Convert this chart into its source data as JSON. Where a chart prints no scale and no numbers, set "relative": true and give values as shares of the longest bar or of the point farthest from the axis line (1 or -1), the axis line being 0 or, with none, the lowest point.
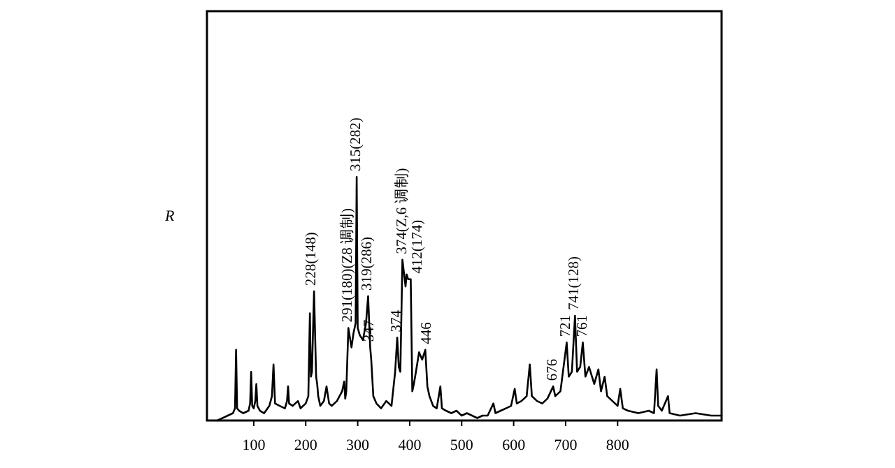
{
  "chart_data": {
    "type": "line",
    "ylabel": "R",
    "relative": true,
    "xlim": [
      10,
      1000
    ],
    "xticks": [
      100,
      200,
      300,
      400,
      500,
      600,
      700,
      800
    ],
    "grid": false,
    "line_style": "solid",
    "series": [
      {
        "color": "#000000",
        "x": [
          30,
          40,
          50,
          60,
          64,
          66,
          68,
          72,
          80,
          90,
          93,
          95,
          97,
          100,
          103,
          105,
          107,
          112,
          120,
          130,
          135,
          138,
          141,
          150,
          160,
          164,
          166,
          168,
          175,
          185,
          190,
          200,
          205,
          208,
          210,
          212,
          216,
          220,
          222,
          224,
          228,
          235,
          240,
          245,
          250,
          260,
          270,
          274,
          276,
          278,
          282,
          288,
          292,
          296,
          298,
          300,
          304,
          310,
          316,
          320,
          324,
          326,
          330,
          336,
          345,
          355,
          365,
          372,
          376,
          379,
          382,
          386,
          392,
          394,
          397,
          402,
          405,
          408,
          412,
          418,
          424,
          430,
          434,
          438,
          445,
          452,
          459,
          462,
          470,
          480,
          490,
          500,
          510,
          520,
          530,
          540,
          550,
          561,
          565,
          575,
          585,
          595,
          602,
          606,
          615,
          625,
          631,
          635,
          645,
          655,
          665,
          676,
          680,
          690,
          702,
          706,
          712,
          718,
          722,
          728,
          733,
          738,
          745,
          755,
          763,
          768,
          775,
          780,
          790,
          800,
          805,
          810,
          820,
          840,
          860,
          870,
          875,
          878,
          885,
          897,
          900,
          920,
          950,
          980,
          1000
        ],
        "values": [
          0.0,
          0.01,
          0.02,
          0.03,
          0.05,
          0.29,
          0.05,
          0.04,
          0.03,
          0.04,
          0.07,
          0.2,
          0.06,
          0.05,
          0.08,
          0.15,
          0.06,
          0.04,
          0.03,
          0.06,
          0.1,
          0.23,
          0.07,
          0.06,
          0.05,
          0.08,
          0.14,
          0.07,
          0.06,
          0.08,
          0.05,
          0.07,
          0.1,
          0.44,
          0.18,
          0.2,
          0.53,
          0.18,
          0.15,
          0.1,
          0.06,
          0.08,
          0.14,
          0.07,
          0.06,
          0.08,
          0.12,
          0.16,
          0.09,
          0.12,
          0.38,
          0.3,
          0.36,
          0.4,
          1.0,
          0.38,
          0.35,
          0.33,
          0.4,
          0.51,
          0.3,
          0.25,
          0.1,
          0.07,
          0.05,
          0.08,
          0.06,
          0.2,
          0.34,
          0.22,
          0.2,
          0.66,
          0.55,
          0.6,
          0.58,
          0.58,
          0.12,
          0.15,
          0.2,
          0.28,
          0.25,
          0.29,
          0.14,
          0.1,
          0.06,
          0.05,
          0.14,
          0.05,
          0.04,
          0.03,
          0.04,
          0.02,
          0.03,
          0.02,
          0.01,
          0.02,
          0.02,
          0.07,
          0.03,
          0.04,
          0.05,
          0.06,
          0.13,
          0.07,
          0.08,
          0.1,
          0.23,
          0.1,
          0.08,
          0.07,
          0.09,
          0.14,
          0.1,
          0.12,
          0.32,
          0.18,
          0.2,
          0.43,
          0.2,
          0.22,
          0.32,
          0.18,
          0.22,
          0.15,
          0.21,
          0.12,
          0.18,
          0.1,
          0.08,
          0.06,
          0.13,
          0.05,
          0.04,
          0.03,
          0.04,
          0.03,
          0.21,
          0.06,
          0.04,
          0.1,
          0.03,
          0.02,
          0.03,
          0.02,
          0.02
        ]
      }
    ],
    "annotations": [
      {
        "text": "228(148)",
        "x": 212,
        "y": 0.53
      },
      {
        "text": "291(180)(Z8 调制)",
        "x": 282,
        "y": 0.38
      },
      {
        "text": "315(282)",
        "x": 298,
        "y": 1.0
      },
      {
        "text": "319(286)",
        "x": 320,
        "y": 0.51
      },
      {
        "text": "347",
        "x": 324,
        "y": 0.3
      },
      {
        "text": "374",
        "x": 376,
        "y": 0.34
      },
      {
        "text": "374(Z,6 调制)",
        "x": 386,
        "y": 0.66
      },
      {
        "text": "412(174)",
        "x": 402,
        "y": 0.58
      },
      {
        "text": "446",
        "x": 434,
        "y": 0.29
      },
      {
        "text": "676",
        "x": 676,
        "y": 0.14
      },
      {
        "text": "721",
        "x": 702,
        "y": 0.32
      },
      {
        "text": "741(128)",
        "x": 718,
        "y": 0.43
      },
      {
        "text": "761",
        "x": 733,
        "y": 0.32
      }
    ]
  }
}
